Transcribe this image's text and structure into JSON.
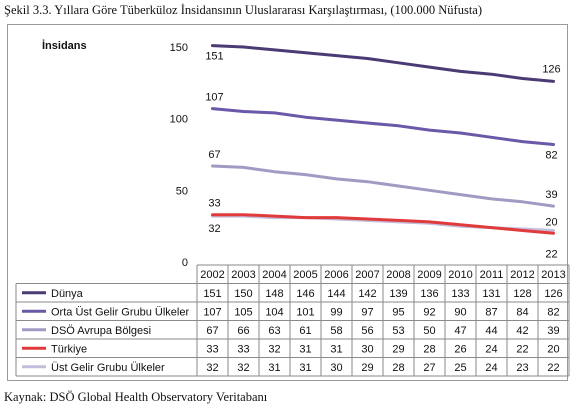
{
  "caption": "Şekil 3.3. Yıllara Göre Tüberküloz İnsidansının Uluslararası Karşılaştırması, (100.000 Nüfusta)",
  "source": "Kaynak: DSÖ Global Health Observatory Veritabanı",
  "chart_data": {
    "type": "line",
    "ylabel": "İnsidans",
    "ylim": [
      0,
      150
    ],
    "yticks": [
      0,
      50,
      100,
      150
    ],
    "categories": [
      "2002",
      "2003",
      "2004",
      "2005",
      "2006",
      "2007",
      "2008",
      "2009",
      "2010",
      "2011",
      "2012",
      "2013"
    ],
    "series": [
      {
        "name": "Dünya",
        "color": "#4a3b74",
        "values": [
          151,
          150,
          148,
          146,
          144,
          142,
          139,
          136,
          133,
          131,
          128,
          126
        ],
        "labels": {
          "first": "151",
          "last": "126"
        }
      },
      {
        "name": "Orta Üst Gelir Grubu Ülkeler",
        "color": "#6a58a8",
        "values": [
          107,
          105,
          104,
          101,
          99,
          97,
          95,
          92,
          90,
          87,
          84,
          82
        ],
        "labels": {
          "first": "107",
          "last": "82"
        }
      },
      {
        "name": "DSÖ Avrupa Bölgesi",
        "color": "#a39ac4",
        "values": [
          67,
          66,
          63,
          61,
          58,
          56,
          53,
          50,
          47,
          44,
          42,
          39
        ],
        "labels": {
          "first": "67",
          "last": "39"
        }
      },
      {
        "name": "Türkiye",
        "color": "#e03a3a",
        "values": [
          33,
          33,
          32,
          31,
          31,
          30,
          29,
          28,
          26,
          24,
          22,
          20
        ],
        "labels": {
          "first": "33",
          "last": "20"
        }
      },
      {
        "name": "Üst Gelir Grubu Ülkeler",
        "color": "#c3bddb",
        "values": [
          32,
          32,
          31,
          31,
          30,
          29,
          28,
          27,
          25,
          24,
          23,
          22
        ],
        "labels": {
          "first": "32",
          "last": "22"
        }
      }
    ]
  }
}
